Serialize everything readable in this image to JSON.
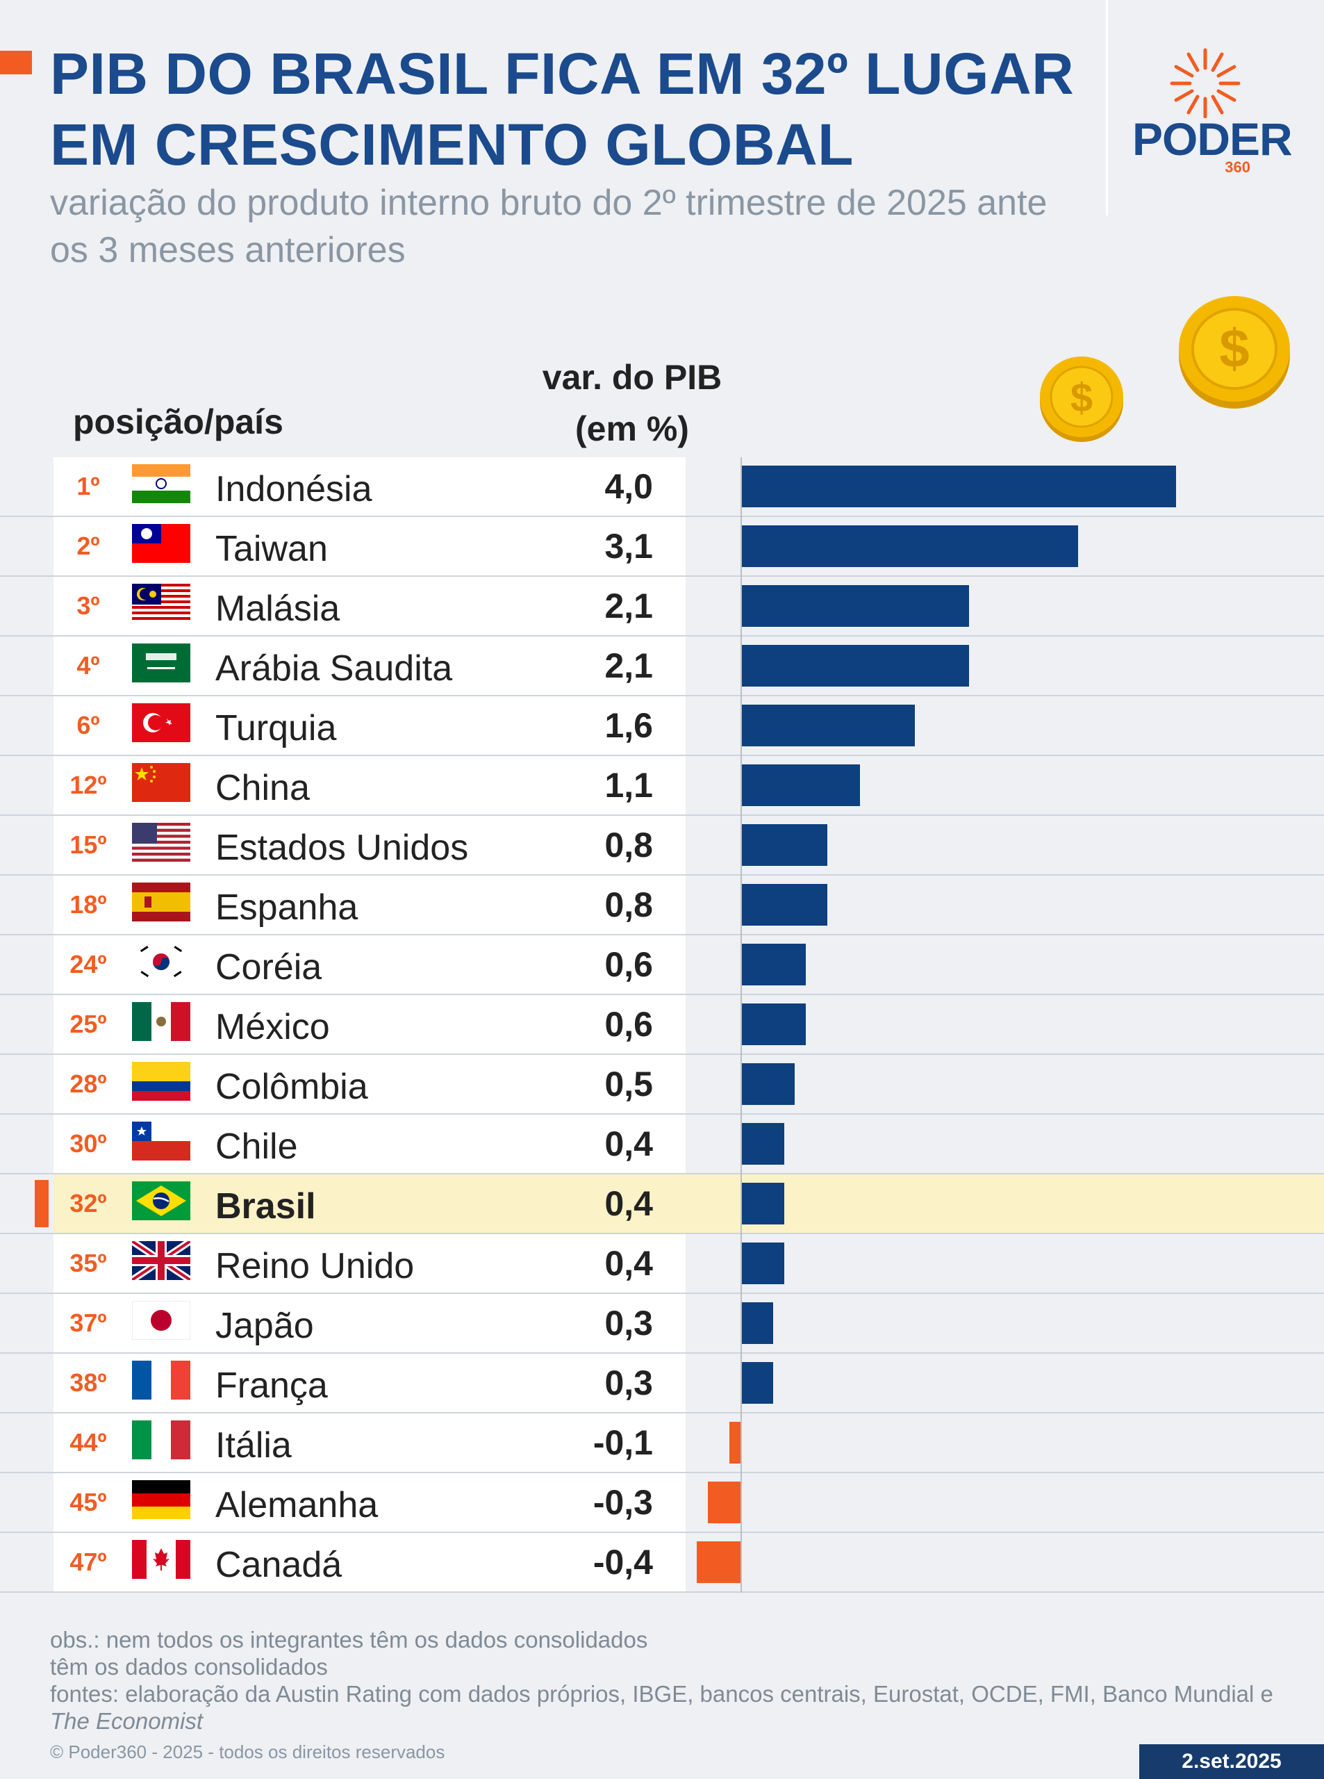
{
  "header": {
    "title": "PIB DO BRASIL FICA EM  32º LUGAR EM CRESCIMENTO GLOBAL",
    "subtitle": "variação do produto interno bruto do 2º trimestre de 2025 ante os 3 meses anteriores",
    "logo_text": "PODER",
    "logo_num": "360"
  },
  "columns": {
    "country_header": "posição/país",
    "value_header_line1": "var. do PIB",
    "value_header_line2": "(em %)"
  },
  "colors": {
    "accent": "#f25c22",
    "brand_blue": "#1b4a8d",
    "bar_positive": "#0e3f7e",
    "bar_negative": "#f25c22",
    "highlight": "#fcf2c7"
  },
  "chart_data": {
    "type": "bar",
    "orientation": "horizontal",
    "title": "PIB DO BRASIL FICA EM  32º LUGAR EM CRESCIMENTO GLOBAL",
    "xlabel": "var. do PIB (em %)",
    "highlight": "Brasil",
    "xlim": [
      -0.4,
      4.0
    ],
    "rows": [
      {
        "rank": "1º",
        "country": "Indonésia",
        "value": 4.0,
        "label": "4,0",
        "flag": "indonesia-flag-icon"
      },
      {
        "rank": "2º",
        "country": "Taiwan",
        "value": 3.1,
        "label": "3,1",
        "flag": "taiwan-flag-icon"
      },
      {
        "rank": "3º",
        "country": "Malásia",
        "value": 2.1,
        "label": "2,1",
        "flag": "malaysia-flag-icon"
      },
      {
        "rank": "4º",
        "country": "Arábia Saudita",
        "value": 2.1,
        "label": "2,1",
        "flag": "saudi-arabia-flag-icon"
      },
      {
        "rank": "6º",
        "country": "Turquia",
        "value": 1.6,
        "label": "1,6",
        "flag": "turkey-flag-icon"
      },
      {
        "rank": "12º",
        "country": "China",
        "value": 1.1,
        "label": "1,1",
        "flag": "china-flag-icon"
      },
      {
        "rank": "15º",
        "country": "Estados Unidos",
        "value": 0.8,
        "label": "0,8",
        "flag": "usa-flag-icon"
      },
      {
        "rank": "18º",
        "country": "Espanha",
        "value": 0.8,
        "label": "0,8",
        "flag": "spain-flag-icon"
      },
      {
        "rank": "24º",
        "country": "Coréia",
        "value": 0.6,
        "label": "0,6",
        "flag": "korea-flag-icon"
      },
      {
        "rank": "25º",
        "country": "México",
        "value": 0.6,
        "label": "0,6",
        "flag": "mexico-flag-icon"
      },
      {
        "rank": "28º",
        "country": "Colômbia",
        "value": 0.5,
        "label": "0,5",
        "flag": "colombia-flag-icon"
      },
      {
        "rank": "30º",
        "country": "Chile",
        "value": 0.4,
        "label": "0,4",
        "flag": "chile-flag-icon"
      },
      {
        "rank": "32º",
        "country": "Brasil",
        "value": 0.4,
        "label": "0,4",
        "flag": "brazil-flag-icon"
      },
      {
        "rank": "35º",
        "country": "Reino Unido",
        "value": 0.4,
        "label": "0,4",
        "flag": "uk-flag-icon"
      },
      {
        "rank": "37º",
        "country": "Japão",
        "value": 0.3,
        "label": "0,3",
        "flag": "japan-flag-icon"
      },
      {
        "rank": "38º",
        "country": "França",
        "value": 0.3,
        "label": "0,3",
        "flag": "france-flag-icon"
      },
      {
        "rank": "44º",
        "country": "Itália",
        "value": -0.1,
        "label": "-0,1",
        "flag": "italy-flag-icon"
      },
      {
        "rank": "45º",
        "country": "Alemanha",
        "value": -0.3,
        "label": "-0,3",
        "flag": "germany-flag-icon"
      },
      {
        "rank": "47º",
        "country": "Canadá",
        "value": -0.4,
        "label": "-0,4",
        "flag": "canada-flag-icon"
      }
    ]
  },
  "footer": {
    "obs_line1": "obs.: nem todos os integrantes têm os dados consolidados",
    "obs_line2": "têm os dados consolidados",
    "sources": "fontes: elaboração da Austin Rating com dados próprios, IBGE, bancos centrais, Eurostat, OCDE, FMI, Banco Mundial e",
    "sources_italic": "The Economist",
    "copyright": "© Poder360 - 2025 - todos os direitos reservados",
    "date": "2.set.2025"
  }
}
